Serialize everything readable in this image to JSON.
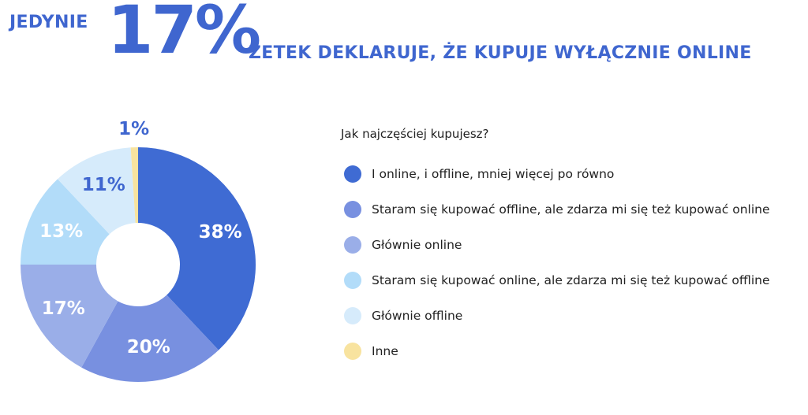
{
  "headline": {
    "prefix": "JEDYNIE",
    "highlight": "17%",
    "suffix": "ZETEK DEKLARUJE, ŻE KUPUJE WYŁĄCZNIE ONLINE",
    "color": "#3f66cf"
  },
  "chart_data": {
    "type": "pie",
    "donut": true,
    "title": "Jak najczęściej kupujesz?",
    "categories": [
      "I online, i offline, mniej więcej po równo",
      "Staram się kupować offline, ale zdarza mi się też kupować online",
      "Głównie online",
      "Staram się kupować online, ale zdarza mi się też kupować offline",
      "Głównie offline",
      "Inne"
    ],
    "values": [
      38,
      20,
      17,
      13,
      11,
      1
    ],
    "labels": [
      "38%",
      "20%",
      "17%",
      "13%",
      "11%",
      "1%"
    ],
    "colors": [
      "#3f6bd3",
      "#7890e0",
      "#9aaee8",
      "#b2dcf9",
      "#d6ebfb",
      "#f8e39f"
    ],
    "label_colors": [
      "#ffffff",
      "#ffffff",
      "#ffffff",
      "#ffffff",
      "#3f66cf",
      "#3f66cf"
    ],
    "legend_position": "right"
  }
}
